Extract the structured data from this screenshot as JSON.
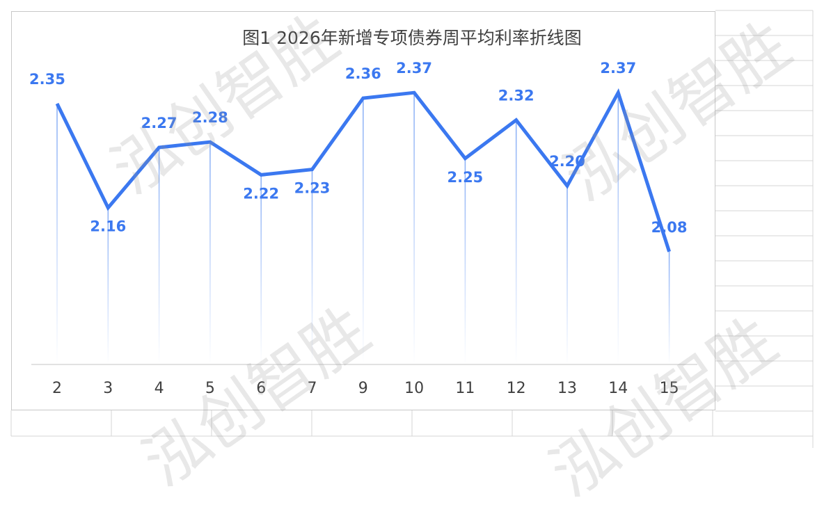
{
  "watermark": "泓创智胜",
  "colors": {
    "line": "#3b78f0",
    "label": "#3b78f0",
    "axis": "#d9d9d9",
    "drop": "#7fa8f5"
  },
  "chart_data": {
    "type": "line",
    "title": "图1 2026年新增专项债券周平均利率折线图",
    "categories": [
      "2",
      "3",
      "4",
      "5",
      "6",
      "7",
      "9",
      "10",
      "11",
      "12",
      "13",
      "14",
      "15"
    ],
    "series": [
      {
        "values": [
          2.35,
          2.16,
          2.27,
          2.28,
          2.22,
          2.23,
          2.36,
          2.37,
          2.25,
          2.32,
          2.2,
          2.37,
          2.08
        ]
      }
    ],
    "data_labels": [
      "2.35",
      "2.16",
      "2.27",
      "2.28",
      "2.22",
      "2.23",
      "2.36",
      "2.37",
      "2.25",
      "2.32",
      "2.20",
      "2.37",
      "2.08"
    ],
    "xlabel": "",
    "ylabel": "",
    "grid": false,
    "legend": "none"
  }
}
